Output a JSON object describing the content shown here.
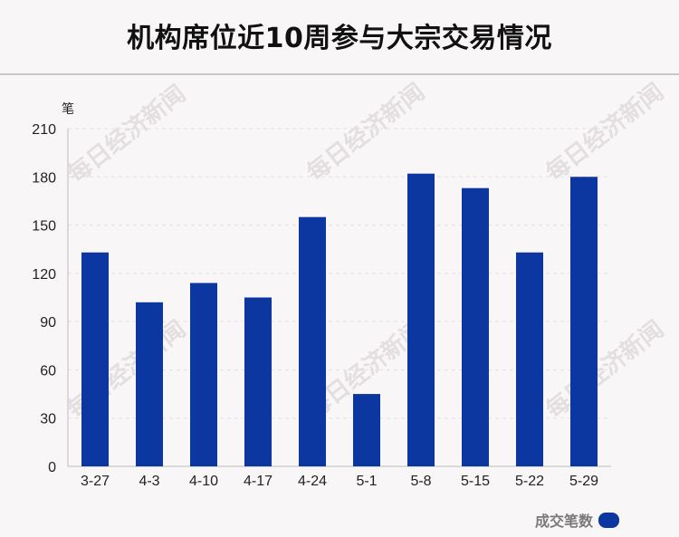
{
  "header": {
    "title": "机构席位近10周参与大宗交易情况"
  },
  "watermark": {
    "text": "每日经济新闻"
  },
  "legend": {
    "label": "成交笔数"
  },
  "colors": {
    "bar": "#0c36a0",
    "axis": "#bdbdbd",
    "grid": "#e4e0e1",
    "text": "#222222"
  },
  "chart_data": {
    "type": "bar",
    "title": "机构席位近10周参与大宗交易情况",
    "xlabel": "",
    "ylabel": "笔",
    "categories": [
      "3-27",
      "4-3",
      "4-10",
      "4-17",
      "4-24",
      "5-1",
      "5-8",
      "5-15",
      "5-22",
      "5-29"
    ],
    "series": [
      {
        "name": "成交笔数",
        "values": [
          133,
          102,
          114,
          105,
          155,
          45,
          182,
          173,
          133,
          180
        ]
      }
    ],
    "ylim": [
      0,
      210
    ],
    "yticks": [
      0,
      30,
      60,
      90,
      120,
      150,
      180,
      210
    ],
    "grid": true,
    "legend_position": "bottom-right"
  }
}
